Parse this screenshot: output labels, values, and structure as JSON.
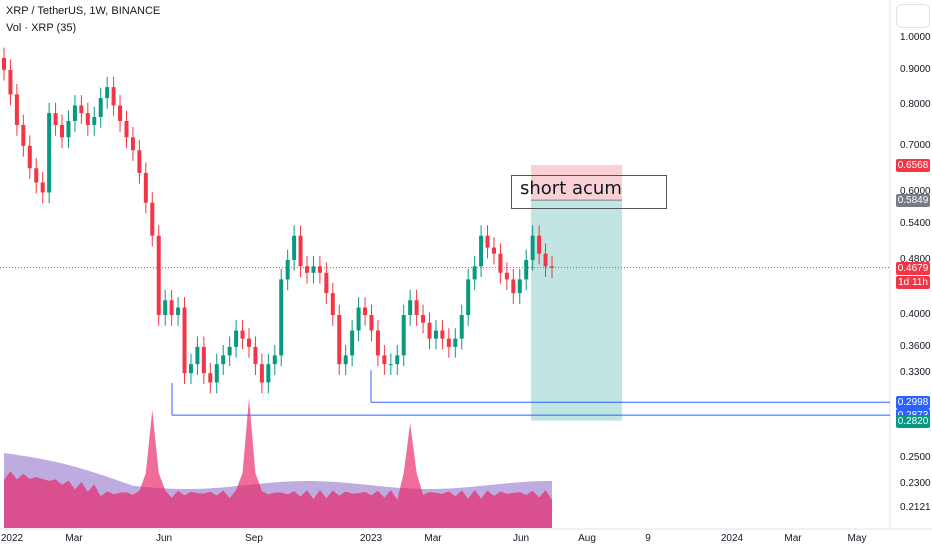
{
  "header": {
    "title": "XRP / TetherUS, 1W, BINANCE",
    "volume_label": "Vol · XRP (35)"
  },
  "annotation": {
    "text": "short acum"
  },
  "price_badges": [
    {
      "label": "0.6568",
      "value": 0.6568,
      "color": "#f23645"
    },
    {
      "label": "0.5849",
      "value": 0.5849,
      "color": "#787b86"
    },
    {
      "label": "0.4679",
      "value": 0.4679,
      "color": "#f23645"
    },
    {
      "label": "1d 11h",
      "value": 0.4455,
      "color": "#f23645"
    },
    {
      "label": "0.2998",
      "value": 0.2998,
      "color": "#2962ff"
    },
    {
      "label": "0.2873",
      "value": 0.2873,
      "color": "#2962ff"
    },
    {
      "label": "0.2820",
      "value": 0.282,
      "color": "#089981"
    }
  ],
  "colors": {
    "up": "#089981",
    "down": "#f23645",
    "volume": "#e91e63",
    "volume_ma": "#7e57c2",
    "level_line": "#2962ff",
    "stop_zone": "#f7c5c9",
    "target_zone": "#b2dfdb"
  },
  "chart_data": {
    "type": "candlestick",
    "symbol": "XRP / TetherUS",
    "interval": "1W",
    "exchange": "BINANCE",
    "y_scale": "log",
    "y_ticks": [
      1.0,
      0.9,
      0.8,
      0.7,
      0.6,
      0.54,
      0.48,
      0.44,
      0.4,
      0.36,
      0.33,
      0.25,
      0.23,
      0.2121
    ],
    "y_tick_labels": [
      "1.0000",
      "0.9000",
      "0.8000",
      "0.7000",
      "0.6000",
      "0.5400",
      "0.4800",
      "0.4400",
      "0.4000",
      "0.3600",
      "0.3300",
      "0.2500",
      "0.2300",
      "0.2121"
    ],
    "x_tick_labels": [
      "2022",
      "Mar",
      "Jun",
      "Sep",
      "2023",
      "Mar",
      "Jun",
      "Aug",
      "9",
      "2024",
      "Mar",
      "May"
    ],
    "closes": [
      0.9,
      0.83,
      0.75,
      0.7,
      0.65,
      0.62,
      0.6,
      0.78,
      0.75,
      0.72,
      0.76,
      0.8,
      0.78,
      0.75,
      0.77,
      0.82,
      0.85,
      0.8,
      0.76,
      0.72,
      0.69,
      0.64,
      0.58,
      0.52,
      0.4,
      0.42,
      0.4,
      0.41,
      0.33,
      0.34,
      0.36,
      0.33,
      0.32,
      0.34,
      0.35,
      0.36,
      0.38,
      0.37,
      0.36,
      0.34,
      0.32,
      0.34,
      0.35,
      0.45,
      0.48,
      0.52,
      0.47,
      0.46,
      0.47,
      0.46,
      0.43,
      0.4,
      0.34,
      0.35,
      0.38,
      0.41,
      0.4,
      0.38,
      0.35,
      0.34,
      0.34,
      0.35,
      0.4,
      0.42,
      0.4,
      0.39,
      0.37,
      0.38,
      0.37,
      0.36,
      0.37,
      0.4,
      0.45,
      0.47,
      0.52,
      0.5,
      0.49,
      0.46,
      0.45,
      0.43,
      0.45,
      0.48,
      0.52,
      0.49,
      0.47,
      0.4679
    ],
    "volume_spikes": [
      "Jun 2022",
      "Sep 2022",
      "Mar 2023"
    ],
    "trade_zone": {
      "entry": 0.5849,
      "stop": 0.6568,
      "target": 0.282
    },
    "levels": [
      0.2998,
      0.2873
    ],
    "last_price": 0.4679,
    "countdown": "1d 11h"
  }
}
